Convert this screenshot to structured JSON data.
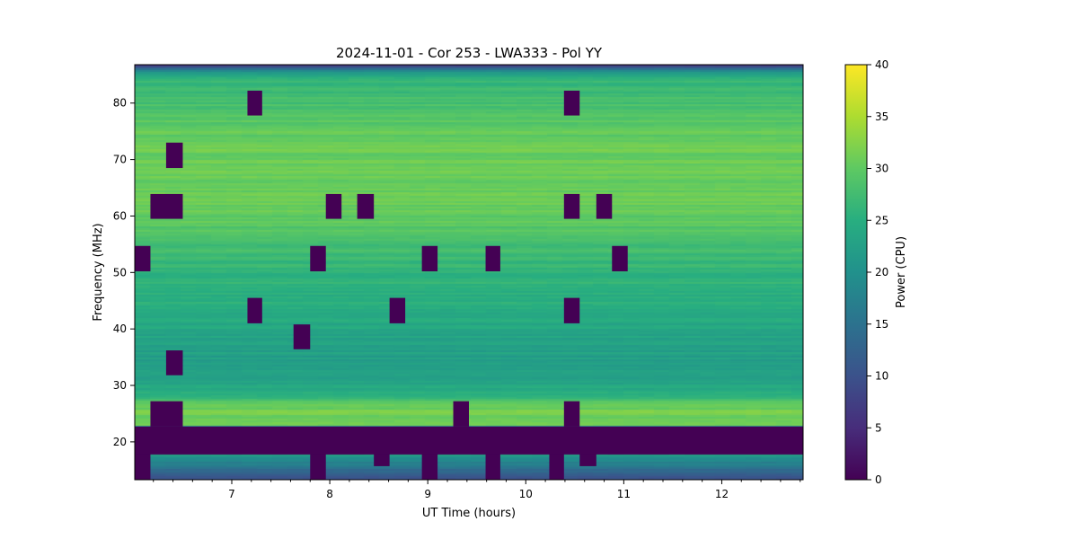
{
  "chart_data": {
    "type": "heatmap",
    "title": "2024-11-01 - Cor 253 - LWA333 - Pol YY",
    "xlabel": "UT Time (hours)",
    "ylabel": "Frequency (MHz)",
    "xlim": [
      6.01,
      12.83
    ],
    "ylim": [
      13.3,
      86.8
    ],
    "xticks": [
      7,
      8,
      9,
      10,
      11,
      12
    ],
    "yticks": [
      20,
      30,
      40,
      50,
      60,
      70,
      80
    ],
    "colorbar": {
      "label": "Power (CPU)",
      "range": [
        0,
        40
      ],
      "ticks": [
        0,
        5,
        10,
        15,
        20,
        25,
        30,
        35,
        40
      ],
      "colormap": "viridis"
    },
    "background_profile": {
      "frequency_mhz": [
        13.3,
        15,
        17.9,
        18.0,
        22.7,
        23,
        26,
        28,
        30,
        33,
        38,
        45,
        50,
        55,
        60,
        65,
        70,
        75,
        80,
        84,
        85.5,
        86.2,
        86.8
      ],
      "power": [
        8,
        14,
        22,
        0,
        0,
        32,
        31,
        27,
        24,
        22,
        23,
        25,
        26,
        28,
        30,
        31,
        31,
        30,
        28,
        26,
        22,
        14,
        8
      ]
    },
    "flagged_blocks": [
      {
        "t": [
          7.16,
          7.31
        ],
        "f": [
          77.8,
          82.2
        ]
      },
      {
        "t": [
          10.39,
          10.55
        ],
        "f": [
          77.8,
          82.2
        ]
      },
      {
        "t": [
          6.33,
          6.5
        ],
        "f": [
          68.5,
          73.0
        ]
      },
      {
        "t": [
          6.17,
          6.5
        ],
        "f": [
          59.5,
          63.9
        ]
      },
      {
        "t": [
          7.96,
          8.12
        ],
        "f": [
          59.5,
          63.9
        ]
      },
      {
        "t": [
          8.28,
          8.45
        ],
        "f": [
          59.5,
          63.9
        ]
      },
      {
        "t": [
          10.39,
          10.55
        ],
        "f": [
          59.5,
          63.9
        ]
      },
      {
        "t": [
          10.72,
          10.88
        ],
        "f": [
          59.5,
          63.9
        ]
      },
      {
        "t": [
          6.01,
          6.17
        ],
        "f": [
          50.2,
          54.7
        ]
      },
      {
        "t": [
          7.8,
          7.96
        ],
        "f": [
          50.2,
          54.7
        ]
      },
      {
        "t": [
          8.94,
          9.1
        ],
        "f": [
          50.2,
          54.7
        ]
      },
      {
        "t": [
          9.59,
          9.74
        ],
        "f": [
          50.2,
          54.7
        ]
      },
      {
        "t": [
          10.88,
          11.04
        ],
        "f": [
          50.2,
          54.7
        ]
      },
      {
        "t": [
          7.16,
          7.31
        ],
        "f": [
          41.0,
          45.5
        ]
      },
      {
        "t": [
          8.61,
          8.77
        ],
        "f": [
          41.0,
          45.5
        ]
      },
      {
        "t": [
          10.39,
          10.55
        ],
        "f": [
          41.0,
          45.5
        ]
      },
      {
        "t": [
          7.63,
          7.8
        ],
        "f": [
          36.4,
          40.8
        ]
      },
      {
        "t": [
          6.33,
          6.5
        ],
        "f": [
          31.8,
          36.2
        ]
      },
      {
        "t": [
          6.17,
          6.5
        ],
        "f": [
          22.7,
          27.2
        ]
      },
      {
        "t": [
          9.26,
          9.42
        ],
        "f": [
          22.7,
          27.2
        ]
      },
      {
        "t": [
          10.39,
          10.55
        ],
        "f": [
          22.7,
          27.2
        ]
      },
      {
        "t": [
          6.01,
          12.83
        ],
        "f": [
          17.9,
          22.7
        ]
      },
      {
        "t": [
          6.01,
          6.17
        ],
        "f": [
          13.3,
          17.9
        ]
      },
      {
        "t": [
          7.8,
          7.96
        ],
        "f": [
          13.3,
          17.9
        ]
      },
      {
        "t": [
          8.45,
          8.61
        ],
        "f": [
          15.7,
          17.9
        ]
      },
      {
        "t": [
          8.94,
          9.1
        ],
        "f": [
          13.3,
          17.9
        ]
      },
      {
        "t": [
          9.59,
          9.74
        ],
        "f": [
          13.3,
          17.9
        ]
      },
      {
        "t": [
          10.24,
          10.39
        ],
        "f": [
          13.3,
          17.9
        ]
      },
      {
        "t": [
          10.55,
          10.72
        ],
        "f": [
          15.7,
          17.9
        ]
      }
    ]
  }
}
